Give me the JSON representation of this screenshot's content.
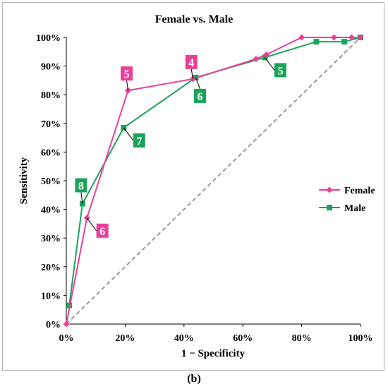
{
  "chart_data": {
    "type": "line",
    "title": "Female vs. Male",
    "xlabel": "1 − Specificity",
    "ylabel": "Sensitivity",
    "xlim": [
      0,
      100
    ],
    "ylim": [
      0,
      100
    ],
    "x_ticks": [
      "0%",
      "20%",
      "40%",
      "60%",
      "80%",
      "100%"
    ],
    "y_ticks": [
      "0%",
      "10%",
      "20%",
      "30%",
      "40%",
      "50%",
      "60%",
      "70%",
      "80%",
      "90%",
      "100%"
    ],
    "grid": false,
    "legend_position": "right",
    "series": [
      {
        "name": "Female",
        "color": "#e8409a",
        "marker": "diamond",
        "points": [
          [
            0,
            0
          ],
          [
            7,
            37
          ],
          [
            21,
            81.5
          ],
          [
            43,
            85.5
          ],
          [
            64.5,
            92.5
          ],
          [
            68,
            94
          ],
          [
            80,
            100
          ],
          [
            91,
            100
          ],
          [
            97,
            100
          ],
          [
            100,
            100
          ]
        ]
      },
      {
        "name": "Male",
        "color": "#1aa35a",
        "marker": "square",
        "points": [
          [
            1,
            6.5
          ],
          [
            5.5,
            42
          ],
          [
            19.5,
            68.5
          ],
          [
            44,
            86
          ],
          [
            67.5,
            93
          ],
          [
            85,
            98.5
          ],
          [
            94.5,
            98.5
          ],
          [
            100,
            100
          ]
        ]
      }
    ],
    "reference_line": {
      "from": [
        0,
        0
      ],
      "to": [
        100,
        100
      ],
      "color": "#999999",
      "style": "dashed"
    },
    "annotations": [
      {
        "text": "6",
        "series": "Female",
        "at": [
          7,
          37
        ],
        "box": "right-below"
      },
      {
        "text": "5",
        "series": "Female",
        "at": [
          21,
          81.5
        ],
        "box": "above-left"
      },
      {
        "text": "4",
        "series": "Female",
        "at": [
          43,
          85.5
        ],
        "box": "above-left"
      },
      {
        "text": "8",
        "series": "Male",
        "at": [
          5.5,
          42
        ],
        "box": "above"
      },
      {
        "text": "7",
        "series": "Male",
        "at": [
          19.5,
          68.5
        ],
        "box": "right-below"
      },
      {
        "text": "6",
        "series": "Male",
        "at": [
          44,
          86
        ],
        "box": "below"
      },
      {
        "text": "5",
        "series": "Male",
        "at": [
          67.5,
          93
        ],
        "box": "right-below"
      }
    ]
  },
  "caption": "(b)"
}
